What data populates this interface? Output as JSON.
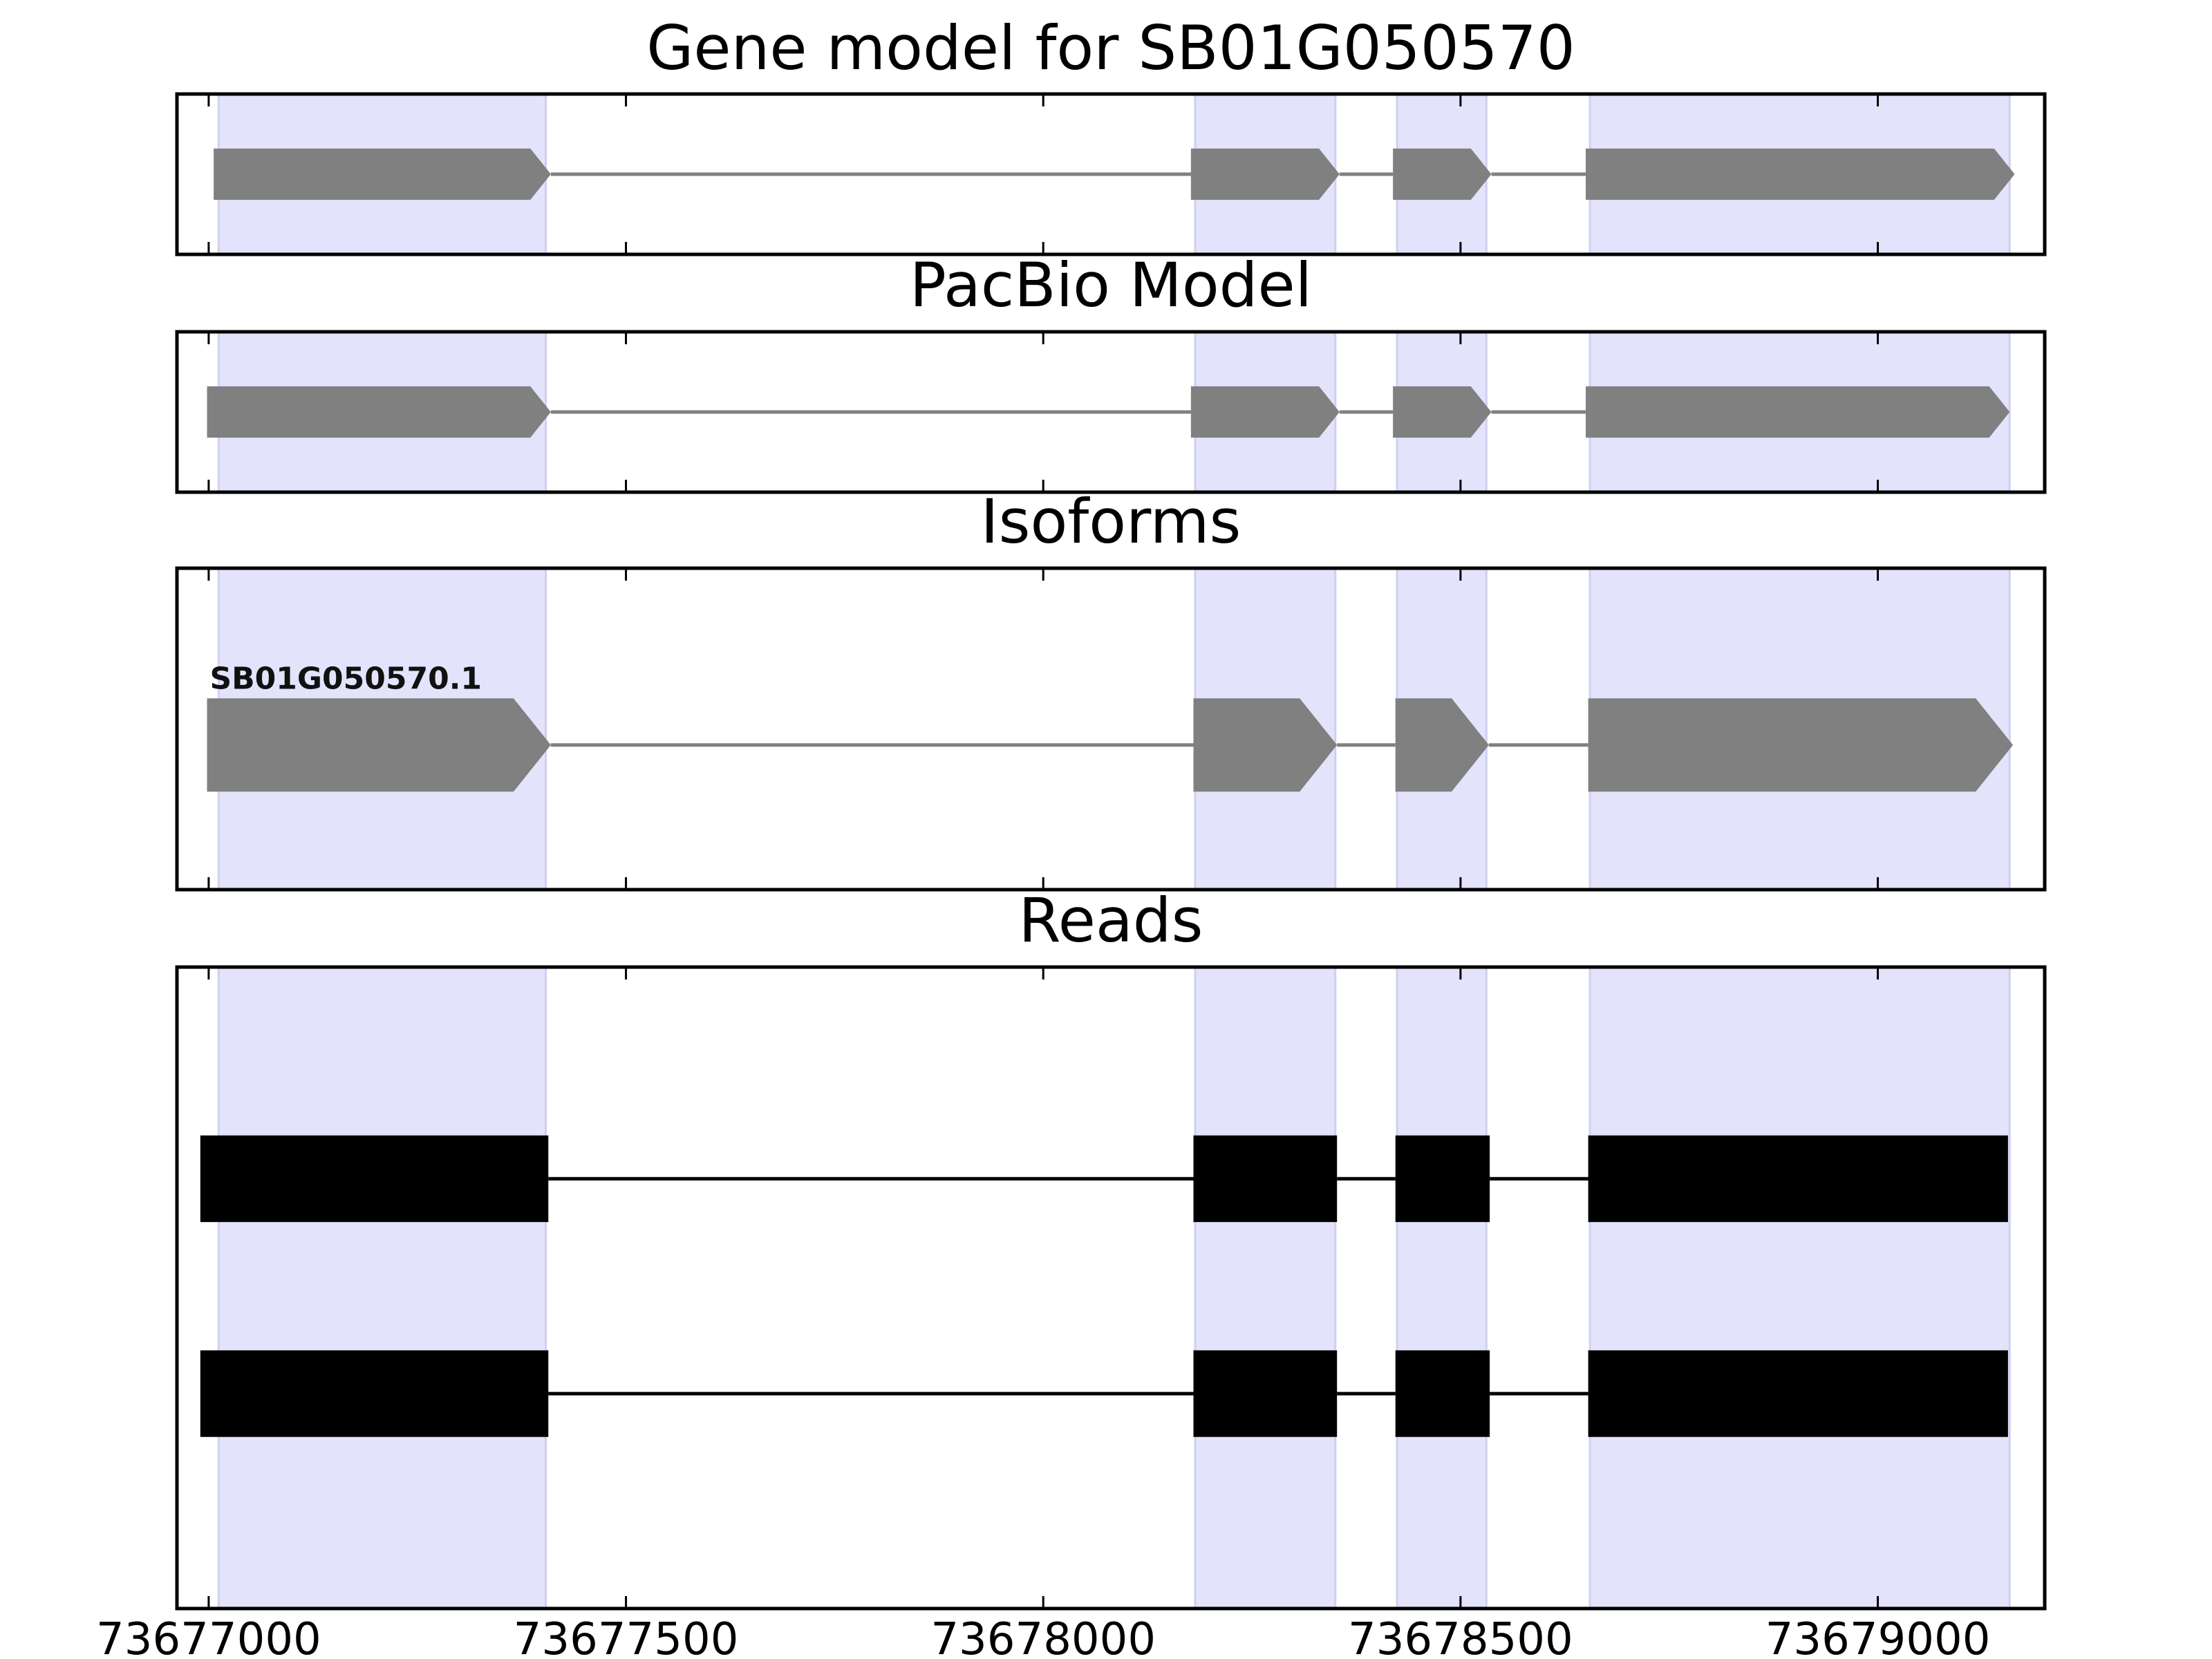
{
  "figure": {
    "background": "#ffffff",
    "highlight_color": "#e3e3fc",
    "highlight_edge_color": "#cfd0f0",
    "model_color": "#808080",
    "read_color": "#000000"
  },
  "chart_data": {
    "type": "gene-model",
    "x_axis": {
      "xlim": [
        73676962,
        73679200
      ],
      "ticks": [
        73677000,
        73677500,
        73678000,
        73678500,
        73679000
      ],
      "tick_labels": [
        "73677000",
        "73677500",
        "73678000",
        "73678500",
        "73679000"
      ]
    },
    "highlight_regions": [
      [
        73677012,
        73677404
      ],
      [
        73678182,
        73678350
      ],
      [
        73678424,
        73678531
      ],
      [
        73678655,
        73679158
      ]
    ],
    "panels": [
      {
        "id": "gene-model",
        "title": "Gene model for SB01G050570",
        "kind": "model",
        "tracks": [
          {
            "label": "",
            "y": 0.5,
            "height": 0.32,
            "strand": "+",
            "exons": [
              [
                73677006,
                73677410
              ],
              [
                73678177,
                73678355
              ],
              [
                73678419,
                73678537
              ],
              [
                73678650,
                73679164
              ]
            ]
          }
        ]
      },
      {
        "id": "pacbio-model",
        "title": "PacBio Model",
        "kind": "model",
        "tracks": [
          {
            "label": "",
            "y": 0.5,
            "height": 0.32,
            "strand": "+",
            "exons": [
              [
                73676998,
                73677410
              ],
              [
                73678177,
                73678355
              ],
              [
                73678419,
                73678537
              ],
              [
                73678650,
                73679158
              ]
            ]
          }
        ]
      },
      {
        "id": "isoforms",
        "title": "Isoforms",
        "kind": "model",
        "tracks": [
          {
            "label": "SB01G050570.1",
            "y": 0.45,
            "height": 0.29,
            "strand": "+",
            "exons": [
              [
                73676998,
                73677410
              ],
              [
                73678180,
                73678352
              ],
              [
                73678422,
                73678534
              ],
              [
                73678653,
                73679162
              ]
            ]
          }
        ]
      },
      {
        "id": "reads",
        "title": "Reads",
        "kind": "reads",
        "tracks": [
          {
            "label": "",
            "y": 0.67,
            "height": 0.135,
            "strand": "",
            "exons": [
              [
                73676990,
                73677407
              ],
              [
                73678180,
                73678352
              ],
              [
                73678422,
                73678535
              ],
              [
                73678653,
                73679156
              ]
            ]
          },
          {
            "label": "",
            "y": 0.335,
            "height": 0.135,
            "strand": "",
            "exons": [
              [
                73676990,
                73677407
              ],
              [
                73678180,
                73678352
              ],
              [
                73678422,
                73678535
              ],
              [
                73678653,
                73679156
              ]
            ]
          }
        ]
      }
    ]
  }
}
